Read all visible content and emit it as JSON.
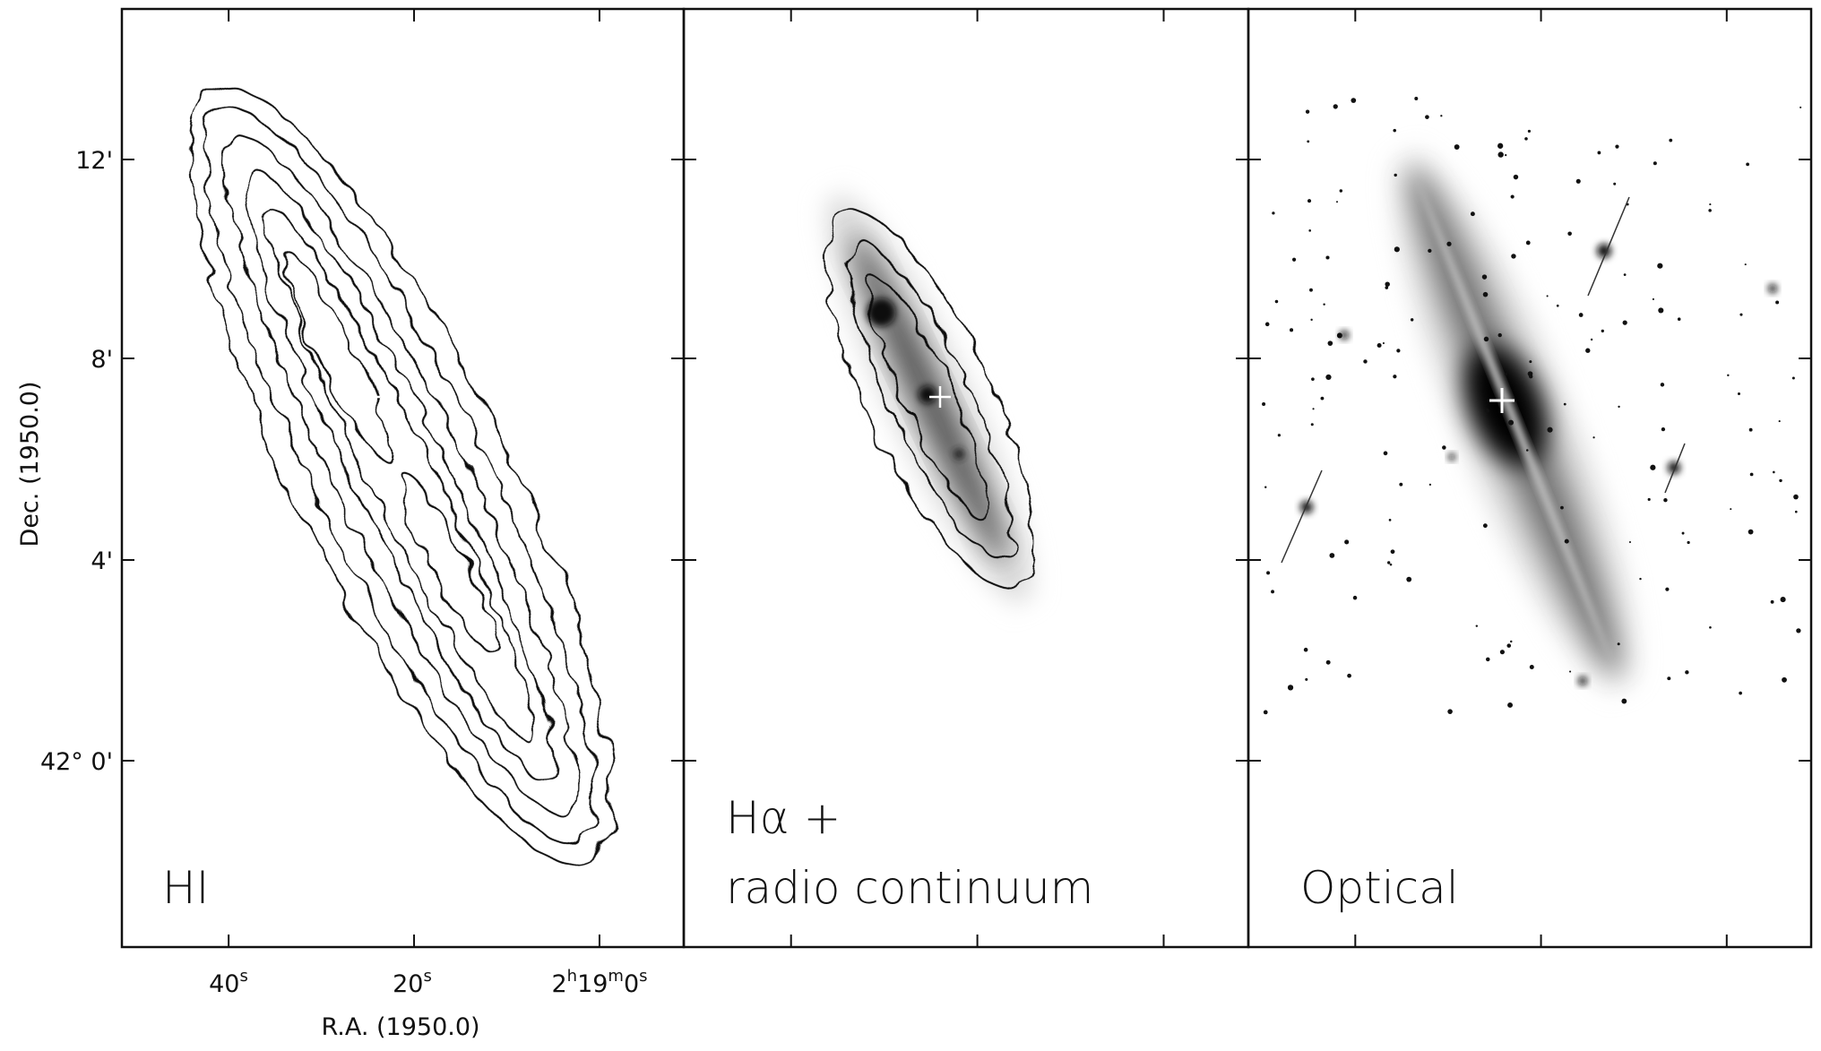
{
  "panels": [
    {
      "label": "HI"
    },
    {
      "label_lines": [
        "Hα +",
        "radio continuum"
      ]
    },
    {
      "label": "Optical"
    }
  ],
  "y_axis": {
    "label": "Dec. (1950.0)",
    "ticks": [
      "12'",
      "8'",
      "4'",
      "42° 0'"
    ]
  },
  "x_axis": {
    "label": "R.A. (1950.0)",
    "ticks": [
      [
        "40",
        "s"
      ],
      [
        "20",
        "s"
      ],
      [
        "2",
        "h",
        "19",
        "m",
        "0",
        "s"
      ]
    ]
  }
}
